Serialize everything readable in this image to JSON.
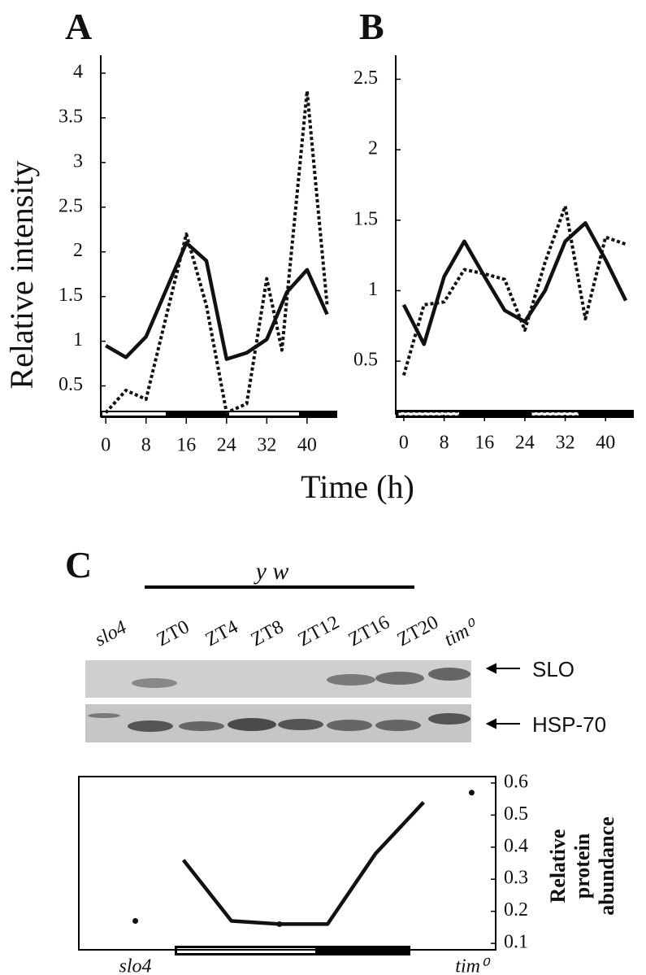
{
  "chart_data": [
    {
      "type": "line",
      "panel": "A",
      "y_label": "Relative intensity",
      "xlim": [
        -1,
        46
      ],
      "xticks": [
        0,
        8,
        16,
        24,
        32,
        40
      ],
      "ylim": [
        0.15,
        4.2
      ],
      "yticks": [
        0.5,
        1.0,
        1.5,
        2.0,
        2.5,
        3.0,
        3.5,
        4.0
      ],
      "series": [
        {
          "color": "#111",
          "style": "solid",
          "x": [
            0,
            4,
            8,
            16,
            20,
            24,
            28,
            32,
            36,
            40,
            44
          ],
          "values": [
            0.95,
            0.82,
            1.05,
            2.1,
            1.9,
            0.8,
            0.87,
            1.02,
            1.55,
            1.8,
            1.3
          ]
        },
        {
          "color": "#111",
          "style": "dotted",
          "x": [
            0,
            4,
            8,
            16,
            20,
            24,
            28,
            32,
            35,
            40,
            44
          ],
          "values": [
            0.2,
            0.45,
            0.35,
            2.2,
            1.4,
            0.2,
            0.3,
            1.7,
            0.9,
            3.8,
            1.4
          ]
        }
      ]
    },
    {
      "type": "line",
      "panel": "B",
      "xlim": [
        -1.6,
        45.6
      ],
      "xticks": [
        0,
        8,
        16,
        24,
        32,
        40
      ],
      "ylim": [
        0.12,
        2.67
      ],
      "yticks": [
        0.5,
        1.0,
        1.5,
        2.0,
        2.5
      ],
      "series": [
        {
          "color": "#111",
          "style": "solid",
          "x": [
            0,
            4,
            8,
            12,
            16,
            20,
            24,
            28,
            32,
            36,
            40,
            44
          ],
          "values": [
            0.9,
            0.62,
            1.1,
            1.35,
            1.1,
            0.86,
            0.78,
            1.0,
            1.35,
            1.48,
            1.22,
            0.93
          ]
        },
        {
          "color": "#111",
          "style": "dotted",
          "x": [
            0,
            4,
            8,
            12,
            16,
            20,
            24,
            28,
            32,
            36,
            40,
            44
          ],
          "values": [
            0.4,
            0.9,
            0.92,
            1.15,
            1.12,
            1.08,
            0.72,
            1.2,
            1.6,
            0.8,
            1.38,
            1.33
          ]
        }
      ]
    },
    {
      "type": "line",
      "y_label_lines": [
        "Relative",
        "protein",
        "abundance"
      ],
      "y_axis_side": "right",
      "categories": [
        "slo4",
        null,
        null,
        null,
        null,
        null,
        null,
        "tim⁰"
      ],
      "ylim": [
        0.08,
        0.62
      ],
      "yticks": [
        0.1,
        0.2,
        0.3,
        0.4,
        0.5,
        0.6
      ],
      "series": [
        {
          "color": "#111",
          "style": "dots",
          "values": [
            0.17,
            null,
            null,
            null,
            null,
            null,
            null,
            0.57
          ]
        },
        {
          "color": "#111",
          "style": "solid",
          "values": [
            null,
            0.36,
            0.17,
            0.16,
            0.16,
            0.38,
            0.54,
            null
          ]
        }
      ]
    }
  ],
  "x_label": "Time (h)",
  "panel_c": "C",
  "blot": {
    "group_label": "y w",
    "lanes": [
      "slo4",
      "ZT0",
      "ZT4",
      "ZT8",
      "ZT12",
      "ZT16",
      "ZT20",
      "tim⁰"
    ],
    "bands": [
      "SLO",
      "HSP-70"
    ]
  }
}
